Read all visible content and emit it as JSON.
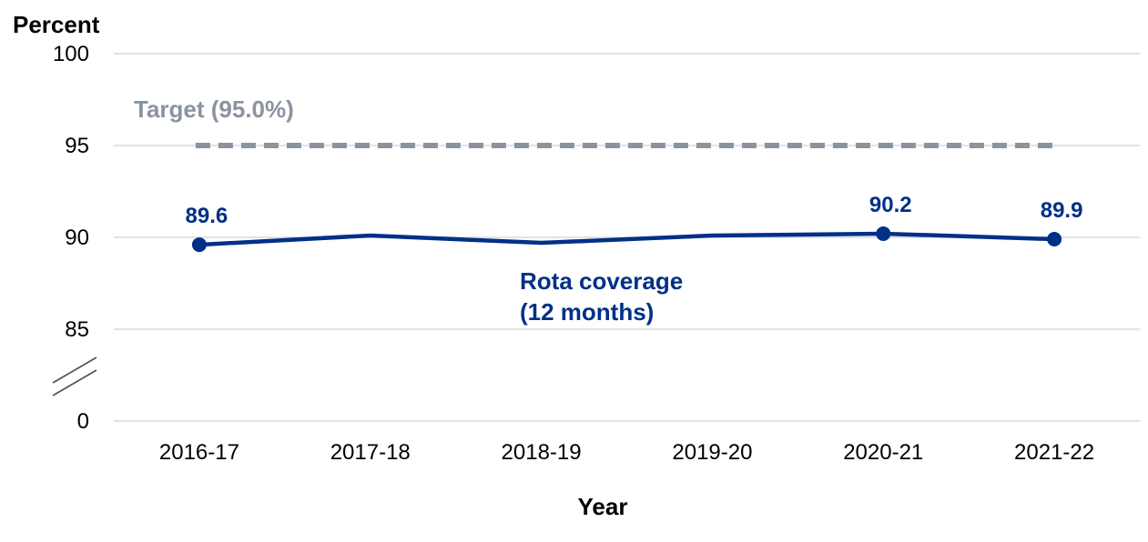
{
  "chart_data": {
    "type": "line",
    "ylabel": "Percent",
    "xlabel": "Year",
    "categories": [
      "2016-17",
      "2017-18",
      "2018-19",
      "2019-20",
      "2020-21",
      "2021-22"
    ],
    "y_ticks": [
      "100",
      "95",
      "90",
      "85",
      "0"
    ],
    "y_tick_values": [
      100,
      95,
      90,
      85,
      0
    ],
    "ylim": [
      0,
      100
    ],
    "axis_break": true,
    "grid": true,
    "series": [
      {
        "name": "Rota coverage\n(12 months)",
        "name_lines": [
          "Rota coverage",
          "(12 months)"
        ],
        "values": [
          89.6,
          90.1,
          89.7,
          90.1,
          90.2,
          89.9
        ],
        "color": "#003087",
        "marker_indices": [
          0,
          4,
          5
        ],
        "data_labels": [
          "89.6",
          "",
          "",
          "",
          "90.2",
          "89.9"
        ]
      }
    ],
    "reference_line": {
      "label": "Target (95.0%)",
      "value": 95.0,
      "color": "#8a939e",
      "style": "dashed"
    }
  }
}
